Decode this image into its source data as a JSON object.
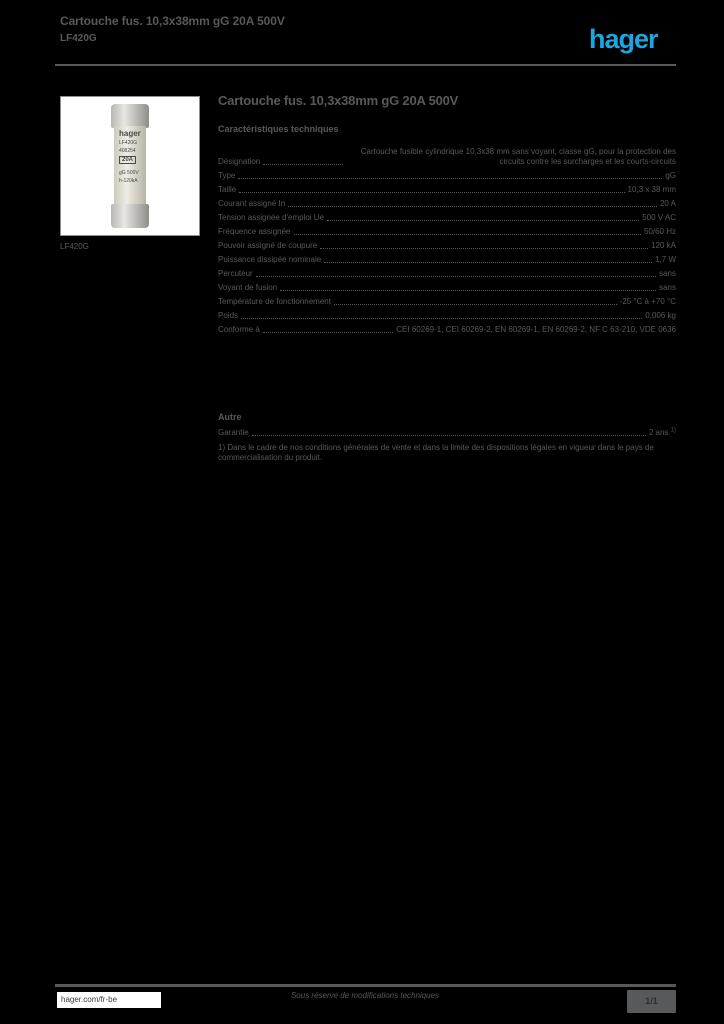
{
  "colors": {
    "background": "#000000",
    "text_gray": "#58595b",
    "hager_blue": "#1aa7e0"
  },
  "header": {
    "title": "Cartouche fus. 10,3x38mm gG 20A 500V",
    "reference": "LF420G",
    "logo_text": "hager"
  },
  "product": {
    "caption": "LF420G",
    "fuse_markings": {
      "brand": "hager",
      "ref": "LF420G",
      "code": "408254",
      "rating": "20A",
      "class_voltage": "gG 500V",
      "breaking_capacity": "h-120kA"
    }
  },
  "main": {
    "title": "Cartouche fus. 10,3x38mm gG 20A 500V",
    "tech": {
      "heading": "Caractéristiques techniques",
      "rows": [
        {
          "label": "Désignation",
          "value": "Cartouche fusible cylindrique 10,3x38 mm sans voyant, classe gG, pour la protection des circuits contre les surcharges et les courts-circuits"
        },
        {
          "label": "Type",
          "value": "gG"
        },
        {
          "label": "Taille",
          "value": "10,3 x 38 mm"
        },
        {
          "label": "Courant assigné In",
          "value": "20 A"
        },
        {
          "label": "Tension assignée d'emploi Ue",
          "value": "500 V AC"
        },
        {
          "label": "Fréquence assignée",
          "value": "50/60 Hz"
        },
        {
          "label": "Pouvoir assigné de coupure",
          "value": "120 kA"
        },
        {
          "label": "Puissance dissipée nominale",
          "value": "1,7 W"
        },
        {
          "label": "Percuteur",
          "value": "sans"
        },
        {
          "label": "Voyant de fusion",
          "value": "sans"
        },
        {
          "label": "Température de fonctionnement",
          "value": "-25 °C à +70 °C"
        },
        {
          "label": "Poids",
          "value": "0,006 kg"
        },
        {
          "label": "Conforme à",
          "value": "CEI 60269-1, CEI 60269-2, EN 60269-1, EN 60269-2, NF C 63-210, VDE 0636"
        }
      ]
    },
    "other": {
      "heading": "Autre",
      "row": {
        "label": "Garantie",
        "value": "2 ans",
        "note_ref": "1)"
      },
      "footnote": "1) Dans le cadre de nos conditions générales de vente et dans la limite des dispositions légales en vigueur dans le pays de commercialisation du produit."
    }
  },
  "footer": {
    "website": "hager.com/fr-be",
    "disclaimer": "Sous réserve de modifications techniques",
    "page_indicator": "1/1"
  }
}
